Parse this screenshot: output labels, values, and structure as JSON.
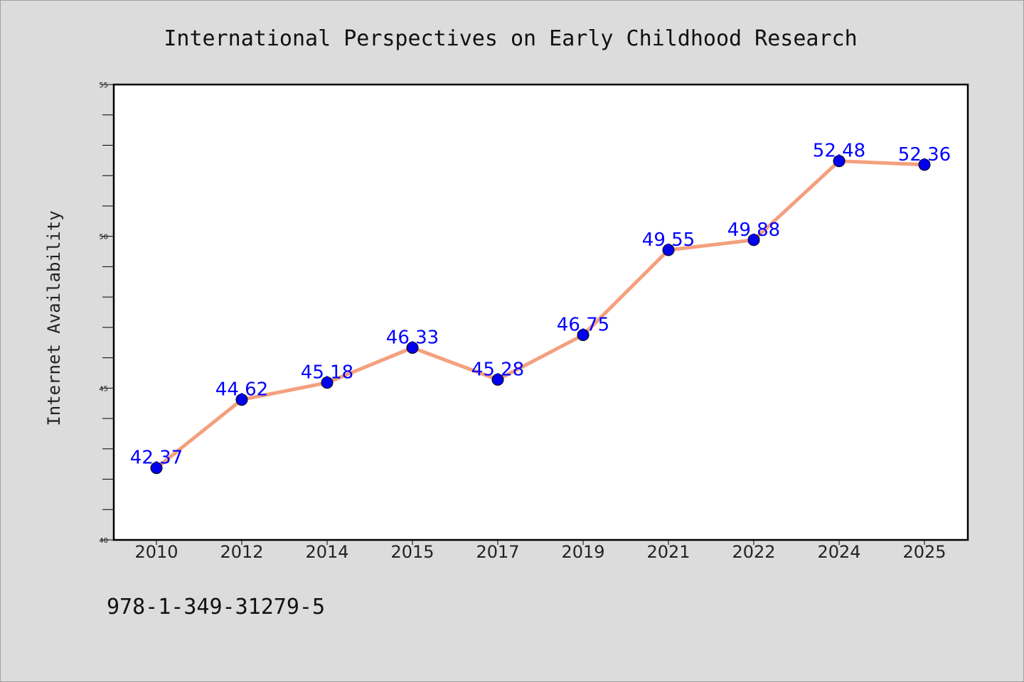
{
  "chart_data": {
    "type": "line",
    "title": "International Perspectives on Early Childhood Research",
    "xlabel": "",
    "ylabel": "Internet Availability",
    "categories": [
      "2010",
      "2012",
      "2014",
      "2015",
      "2017",
      "2019",
      "2021",
      "2022",
      "2024",
      "2025"
    ],
    "series": [
      {
        "values": [
          42.37,
          44.62,
          45.18,
          46.33,
          45.28,
          46.75,
          49.55,
          49.88,
          52.48,
          52.36
        ],
        "line_color": "#f4a07e",
        "marker_color": "#0000ee"
      }
    ],
    "data_labels": [
      "42.37",
      "44.62",
      "45.18",
      "46.33",
      "45.28",
      "46.75",
      "49.55",
      "49.88",
      "52.48",
      "52.36"
    ],
    "ylim": [
      40,
      55
    ],
    "yticks": [
      "40",
      "45",
      "50",
      "55"
    ],
    "grid": false,
    "legend": "none",
    "label_color": "#0000ff"
  },
  "footer": {
    "isbn": "978-1-349-31279-5"
  }
}
